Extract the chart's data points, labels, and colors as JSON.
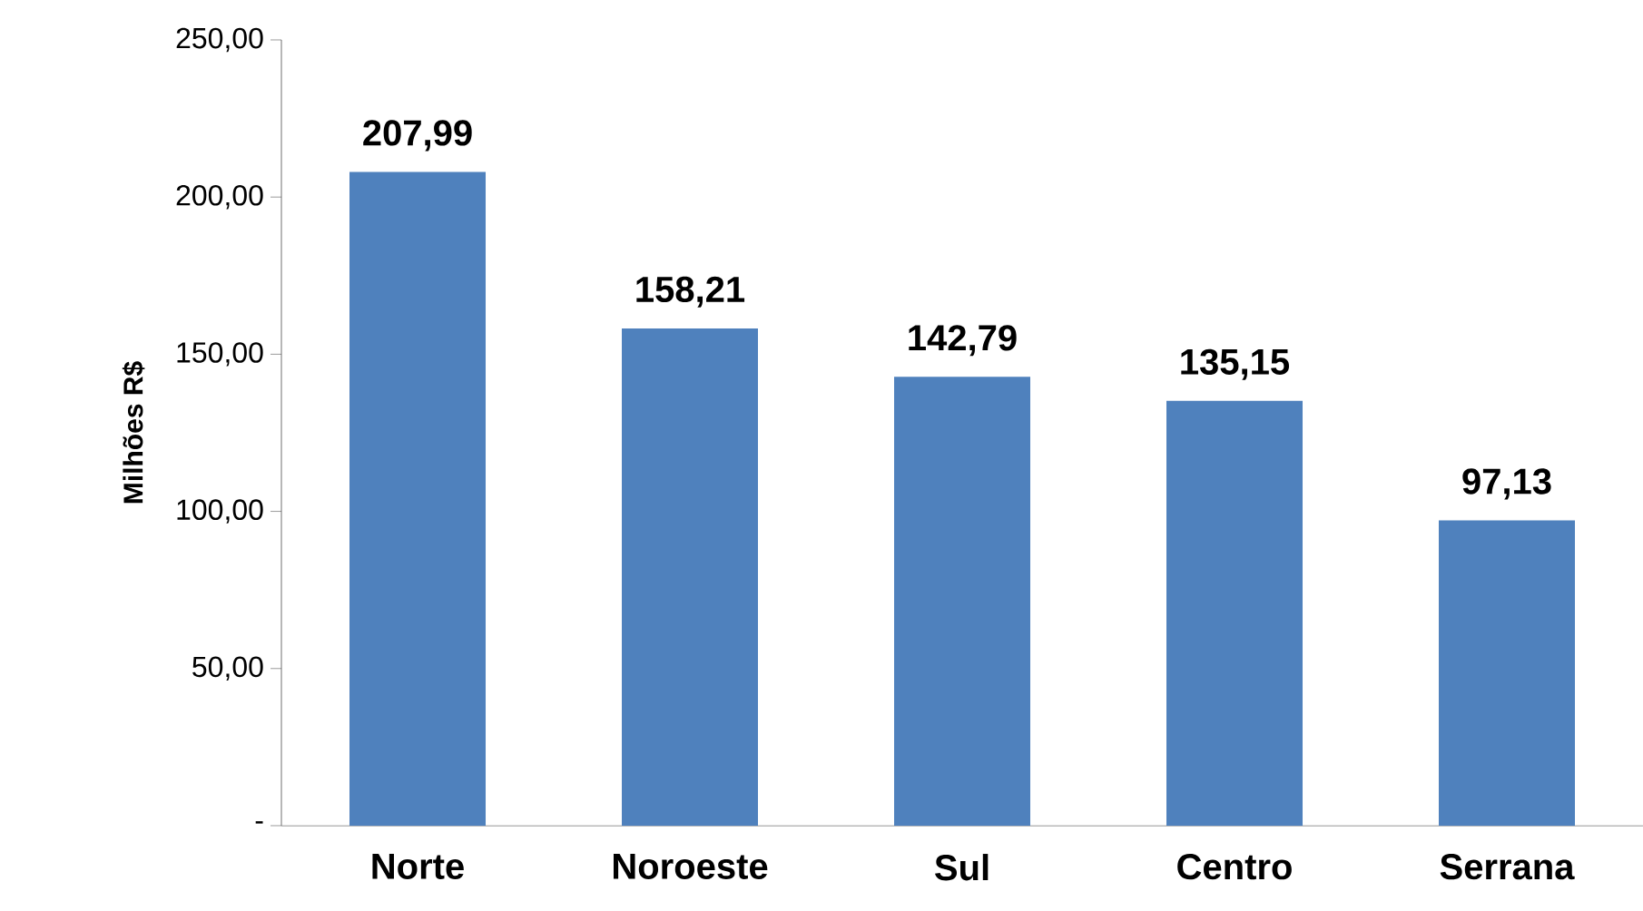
{
  "chart_data": {
    "type": "bar",
    "ylabel": "Milhões R$",
    "categories": [
      "Norte",
      "Noroeste",
      "Sul",
      "Centro",
      "Serrana"
    ],
    "series": [
      {
        "color": "#4f81bd",
        "values": [
          207.99,
          158.21,
          142.79,
          135.15,
          97.13
        ],
        "value_labels": [
          "207,99",
          "158,21",
          "142,79",
          "135,15",
          "97,13"
        ]
      }
    ],
    "ylim": [
      0,
      250
    ],
    "yticks": [
      {
        "value": 0,
        "label": "-"
      },
      {
        "value": 50,
        "label": "50,00"
      },
      {
        "value": 100,
        "label": "100,00"
      },
      {
        "value": 150,
        "label": "150,00"
      },
      {
        "value": 200,
        "label": "200,00"
      },
      {
        "value": 250,
        "label": "250,00"
      }
    ],
    "grid": false
  }
}
